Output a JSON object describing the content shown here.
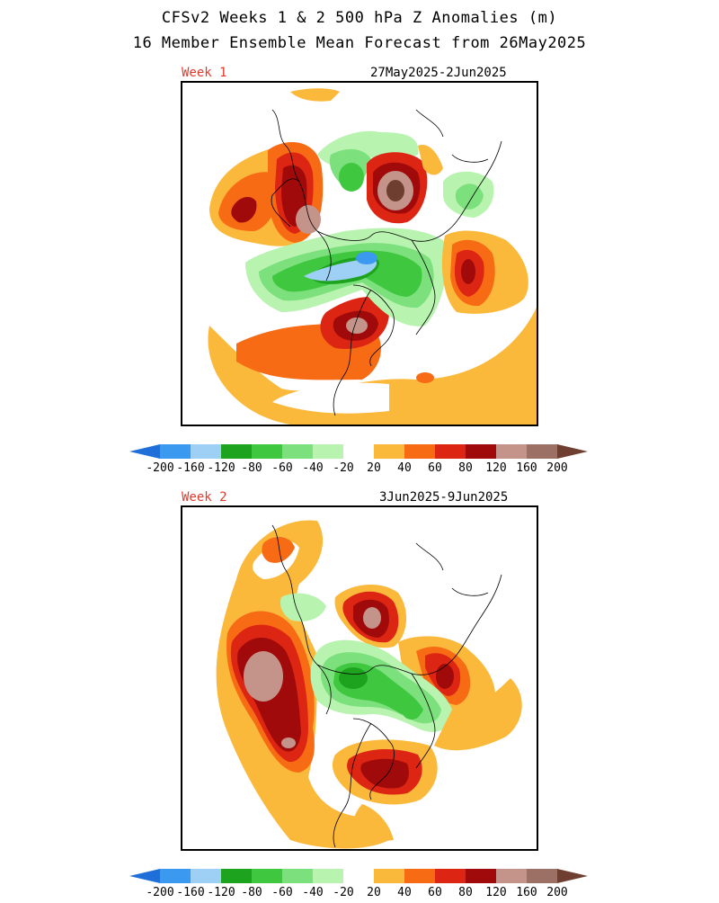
{
  "title_line1": "CFSv2 Weeks 1 & 2 500 hPa Z Anomalies (m)",
  "title_line2": "16 Member Ensemble Mean Forecast from 26May2025",
  "panels": [
    {
      "label": "Week 1",
      "dates": "27May2025-2Jun2025"
    },
    {
      "label": "Week 2",
      "dates": "3Jun2025-9Jun2025"
    }
  ],
  "colorbar": {
    "labels": [
      "-200",
      "-160",
      "-120",
      "-80",
      "-60",
      "-40",
      "-20",
      "20",
      "40",
      "60",
      "80",
      "120",
      "160",
      "200"
    ],
    "colors": [
      "#1e6fd9",
      "#3c99f0",
      "#9ed0f5",
      "#1ea31e",
      "#3fc73f",
      "#7ce07c",
      "#b8f3b0",
      "#ffffff",
      "#fbb93c",
      "#f86b15",
      "#dc2512",
      "#a00a0a",
      "#c4948a",
      "#9c7064",
      "#6e3e30"
    ]
  },
  "colors": {
    "week_label": "#e23a2a",
    "orange_light": "#fbb93c",
    "orange": "#f86b15",
    "red": "#dc2512",
    "dark_red": "#a00a0a",
    "rose": "#c4948a",
    "brown": "#9c7064",
    "dark_brown": "#6e3e30",
    "green_light": "#b8f3b0",
    "green_mid": "#7ce07c",
    "green": "#3fc73f",
    "green_dark": "#1ea31e",
    "blue_light": "#9ed0f5",
    "blue": "#3c99f0"
  }
}
